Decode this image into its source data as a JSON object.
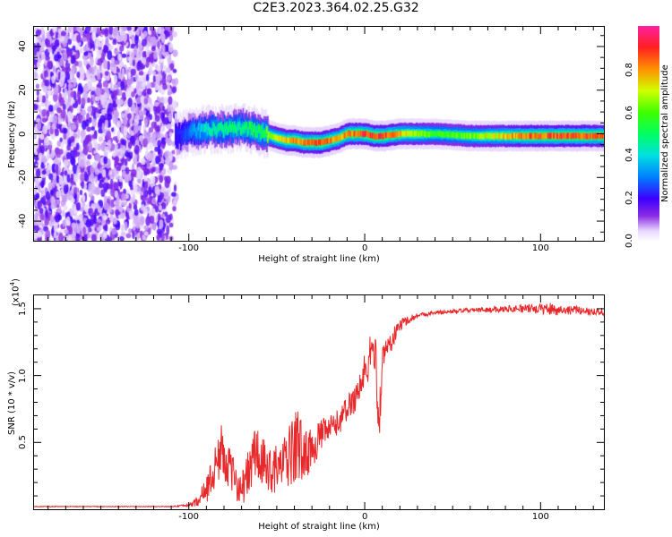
{
  "title": "C2E3.2023.364.02.25.G32",
  "chart_data": [
    {
      "type": "heatmap",
      "xlabel": "Height of straight line (km)",
      "ylabel": "Frequency (Hz)",
      "xlim": [
        -188,
        136
      ],
      "ylim": [
        -49,
        49
      ],
      "x_ticks": [
        "-100",
        "0",
        "100"
      ],
      "x_tick_values": [
        -100,
        0,
        100
      ],
      "y_ticks": [
        "40",
        "20",
        "0",
        "-20",
        "-40"
      ],
      "y_tick_values": [
        40,
        20,
        0,
        -20,
        -40
      ],
      "colorbar": {
        "label": "Normalized spectral amplitude",
        "ticks": [
          "0.0",
          "0.2",
          "0.4",
          "0.6",
          "0.8"
        ],
        "tick_values": [
          0.0,
          0.2,
          0.4,
          0.6,
          0.8
        ],
        "range": [
          0,
          1
        ]
      },
      "noise_region_x": [
        -188,
        -107
      ],
      "ridge": {
        "x": [
          -108,
          -100,
          -90,
          -80,
          -70,
          -60,
          -50,
          -45,
          -40,
          -35,
          -30,
          -25,
          -20,
          -15,
          -10,
          -5,
          0,
          5,
          10,
          20,
          30,
          40,
          60,
          80,
          100,
          120,
          136
        ],
        "freq": [
          -2,
          1,
          2,
          2,
          3,
          1,
          -2,
          -3,
          -3,
          -4,
          -4,
          -4,
          -3,
          -2,
          0,
          0,
          0,
          -1,
          -1,
          0,
          0,
          0,
          -1,
          -1,
          -1,
          -1,
          -1
        ],
        "amplitude": [
          0.2,
          0.3,
          0.45,
          0.5,
          0.5,
          0.55,
          0.75,
          0.8,
          0.85,
          0.85,
          0.9,
          0.9,
          0.85,
          0.8,
          0.85,
          0.9,
          0.9,
          0.9,
          0.9,
          0.8,
          0.7,
          0.6,
          0.65,
          0.8,
          0.9,
          0.9,
          0.9
        ]
      }
    },
    {
      "type": "line",
      "xlabel": "Height of straight line (km)",
      "ylabel": "SNR (10 * v/v)",
      "y_exponent_label": "(x10",
      "y_exponent": "4",
      "y_exponent_close": ")",
      "xlim": [
        -188,
        136
      ],
      "ylim": [
        0,
        1.6
      ],
      "x_ticks": [
        "-100",
        "0",
        "100"
      ],
      "x_tick_values": [
        -100,
        0,
        100
      ],
      "y_ticks": [
        "1.5",
        "1.0",
        "0.5"
      ],
      "y_tick_values": [
        1.5,
        1.0,
        0.5
      ],
      "series": [
        {
          "color": "#e8282a",
          "x": [
            -188,
            -160,
            -130,
            -110,
            -100,
            -95,
            -90,
            -85,
            -82,
            -80,
            -75,
            -70,
            -65,
            -62,
            -60,
            -55,
            -50,
            -45,
            -40,
            -38,
            -35,
            -30,
            -25,
            -20,
            -15,
            -10,
            -5,
            0,
            3,
            6,
            8,
            10,
            12,
            15,
            20,
            25,
            30,
            40,
            50,
            60,
            70,
            80,
            90,
            100,
            105,
            110,
            120,
            130,
            136
          ],
          "y": [
            0.02,
            0.02,
            0.02,
            0.02,
            0.03,
            0.06,
            0.15,
            0.3,
            0.45,
            0.4,
            0.25,
            0.15,
            0.3,
            0.45,
            0.35,
            0.3,
            0.3,
            0.35,
            0.45,
            0.5,
            0.4,
            0.45,
            0.55,
            0.6,
            0.65,
            0.75,
            0.85,
            1.0,
            1.15,
            1.2,
            0.6,
            1.1,
            1.2,
            1.25,
            1.38,
            1.42,
            1.45,
            1.47,
            1.48,
            1.49,
            1.49,
            1.5,
            1.5,
            1.5,
            1.5,
            1.49,
            1.49,
            1.48,
            1.48
          ],
          "noise_amplitude": [
            0.003,
            0.003,
            0.003,
            0.003,
            0.01,
            0.04,
            0.1,
            0.18,
            0.2,
            0.18,
            0.15,
            0.12,
            0.2,
            0.25,
            0.22,
            0.18,
            0.18,
            0.2,
            0.28,
            0.3,
            0.2,
            0.15,
            0.12,
            0.1,
            0.1,
            0.1,
            0.12,
            0.18,
            0.15,
            0.15,
            0.2,
            0.12,
            0.1,
            0.08,
            0.05,
            0.03,
            0.02,
            0.015,
            0.015,
            0.015,
            0.02,
            0.025,
            0.03,
            0.04,
            0.05,
            0.04,
            0.03,
            0.03,
            0.03
          ]
        }
      ]
    }
  ]
}
